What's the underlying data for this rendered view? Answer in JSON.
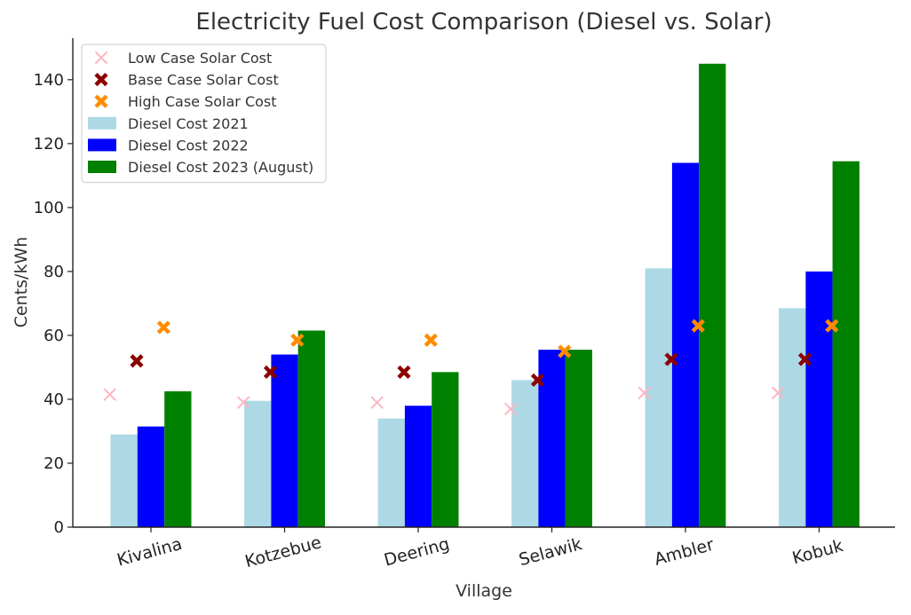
{
  "chart_data": {
    "type": "bar",
    "title": "Electricity Fuel Cost Comparison (Diesel vs. Solar)",
    "xlabel": "Village",
    "ylabel": "Cents/kWh",
    "ylim": [
      0,
      153
    ],
    "yticks": [
      0,
      20,
      40,
      60,
      80,
      100,
      120,
      140
    ],
    "categories": [
      "Kivalina",
      "Kotzebue",
      "Deering",
      "Selawik",
      "Ambler",
      "Kobuk"
    ],
    "bar_series": [
      {
        "name": "Diesel Cost 2021",
        "color": "#add8e6",
        "values": [
          29,
          39.5,
          34,
          46,
          81,
          68.5
        ]
      },
      {
        "name": "Diesel Cost 2022",
        "color": "#0000ff",
        "values": [
          31.5,
          54,
          38,
          55.5,
          114,
          80
        ]
      },
      {
        "name": "Diesel Cost 2023 (August)",
        "color": "#008000",
        "values": [
          42.5,
          61.5,
          48.5,
          55.5,
          145,
          114.5
        ]
      }
    ],
    "marker_series": [
      {
        "name": "Low Case Solar Cost",
        "color": "#ffb6c1",
        "marker": "x",
        "values": [
          41.5,
          39,
          39,
          37,
          42,
          42
        ]
      },
      {
        "name": "Base Case Solar Cost",
        "color": "#8b0000",
        "marker": "X",
        "values": [
          52,
          48.5,
          48.5,
          46,
          52.5,
          52.5
        ]
      },
      {
        "name": "High Case Solar Cost",
        "color": "#ff8c00",
        "marker": "X",
        "values": [
          62.5,
          58.5,
          58.5,
          55,
          63,
          63
        ]
      }
    ],
    "legend_position": "top-left",
    "legend_order": [
      "Low Case Solar Cost",
      "Base Case Solar Cost",
      "High Case Solar Cost",
      "Diesel Cost 2021",
      "Diesel Cost 2022",
      "Diesel Cost 2023 (August)"
    ]
  }
}
